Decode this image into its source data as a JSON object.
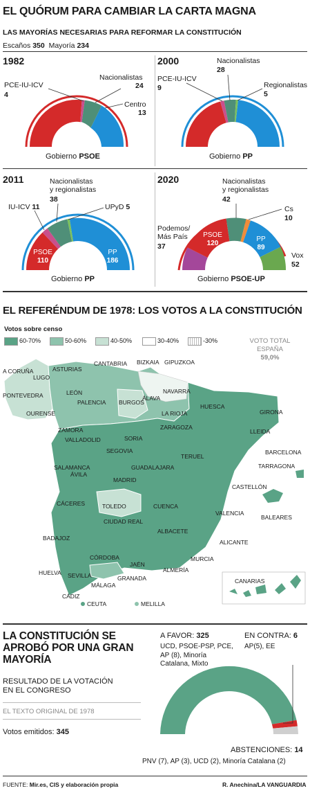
{
  "header": {
    "title": "EL QUÓRUM PARA CAMBIAR LA CARTA MAGNA",
    "subtitle": "LAS MAYORÍAS NECESARIAS PARA REFORMAR LA CONSTITUCIÓN",
    "seats_label": "Escaños",
    "seats_value": "350",
    "majority_label": "Mayoría",
    "majority_value": "234"
  },
  "panels": [
    {
      "year": "1982",
      "gov_prefix": "Gobierno ",
      "gov_party": "PSOE",
      "labels": {
        "left": "PCE-IU-ICV",
        "left_num": "4",
        "mid": "Nacionalistas",
        "mid_num": "24",
        "right": "Centro",
        "right_num": "13"
      }
    },
    {
      "year": "2000",
      "gov_prefix": "Gobierno ",
      "gov_party": "PP",
      "labels": {
        "left": "PCE-IU-ICV",
        "left_num": "9",
        "mid": "Nacionalistas",
        "mid_num": "28",
        "right": "Regionalistas",
        "right_num": "5"
      }
    },
    {
      "year": "2011",
      "gov_prefix": "Gobierno ",
      "gov_party": "PP",
      "labels": {
        "left": "IU-ICV",
        "left_num": "11",
        "mid1": "Nacionalistas",
        "mid2": "y regionalistas",
        "mid_num": "38",
        "right": "UPyD",
        "right_num": "5",
        "inner_left": "PSOE",
        "inner_left_num": "110",
        "inner_right": "PP",
        "inner_right_num": "186"
      }
    },
    {
      "year": "2020",
      "gov_prefix": "Gobierno ",
      "gov_party": "PSOE-UP",
      "labels": {
        "mid1": "Nacionalistas",
        "mid2": "y regionalistas",
        "mid_num": "42",
        "cs": "Cs",
        "cs_num": "10",
        "pod1": "Podemos/",
        "pod2": "Más País",
        "pod_num": "37",
        "psoe": "PSOE",
        "psoe_num": "120",
        "pp": "PP",
        "pp_num": "89",
        "vox": "Vox",
        "vox_num": "52"
      }
    }
  ],
  "referendum": {
    "title": "EL REFERÉNDUM DE 1978: LOS VOTOS A LA CONSTITUCIÓN",
    "legend_title": "Votos sobre censo",
    "legend": [
      {
        "label": "60-70%",
        "color": "#5aa386"
      },
      {
        "label": "50-60%",
        "color": "#8ec3ad"
      },
      {
        "label": "40-50%",
        "color": "#c7e1d4"
      },
      {
        "label": "30-40%",
        "color": "#ffffff"
      },
      {
        "label": "-30%",
        "color": "#f2f2f2"
      }
    ],
    "total_label1": "VOTO TOTAL",
    "total_label2": "ESPAÑA",
    "total_value": "59,0%",
    "provinces": [
      "A CORUÑA",
      "LUGO",
      "PONTEVEDRA",
      "OURENSE",
      "ASTURIAS",
      "CANTABRIA",
      "BIZKAIA",
      "GIPUZKOA",
      "LEÓN",
      "PALENCIA",
      "BURGOS",
      "ÁLAVA",
      "NAVARRA",
      "LA RIOJA",
      "HUESCA",
      "GIRONA",
      "LLEIDA",
      "ZAMORA",
      "VALLADOLID",
      "SORIA",
      "ZARAGOZA",
      "BARCELONA",
      "SEGOVIA",
      "TARRAGONA",
      "SALAMANCA",
      "ÁVILA",
      "GUADALAJARA",
      "TERUEL",
      "MADRID",
      "CASTELLÓN",
      "CÁCERES",
      "TOLEDO",
      "CUENCA",
      "VALENCIA",
      "BALEARES",
      "CIUDAD REAL",
      "ALBACETE",
      "BADAJOZ",
      "ALICANTE",
      "CÓRDOBA",
      "JAÉN",
      "MURCIA",
      "HUELVA",
      "SEVILLA",
      "GRANADA",
      "ALMERÍA",
      "CANARIAS",
      "MÁLAGA",
      "CÁDIZ",
      "CEUTA",
      "MELILLA"
    ]
  },
  "congress": {
    "title1": "LA CONSTITUCIÓN SE",
    "title2": "APROBÓ POR UNA GRAN",
    "title3": "MAYORÍA",
    "sub1": "RESULTADO DE LA VOTACIÓN",
    "sub2": "EN EL CONGRESO",
    "original": "EL TEXTO ORIGINAL DE 1978",
    "votes_label": "Votos emitidos:",
    "votes_value": "345",
    "favor_label": "A FAVOR:",
    "favor_value": "325",
    "favor_list1": "UCD, PSOE-PSP, PCE,",
    "favor_list2": "AP (8), Minoría",
    "favor_list3": "Catalana, Mixto",
    "contra_label": "EN CONTRA:",
    "contra_value": "6",
    "contra_list": "AP(5), EE",
    "abst_label": "ABSTENCIONES:",
    "abst_value": "14",
    "abst_list": "PNV (7), AP (3), UCD (2), Minoría Catalana (2)"
  },
  "footer": {
    "source_label": "FUENTE:",
    "source": "Mir.es, CIS y elaboración propia",
    "credit": "R. Anechina/LA VANGUARDIA"
  },
  "colors": {
    "psoe": "#d42a2a",
    "pp": "#1f8fd6",
    "nat": "#4f8f78",
    "left": "#c9508c",
    "podemos": "#a4479a",
    "vox": "#6aa84f",
    "cs": "#f08c3a",
    "centro": "#1f8fd6",
    "green_dark": "#5aa386"
  }
}
